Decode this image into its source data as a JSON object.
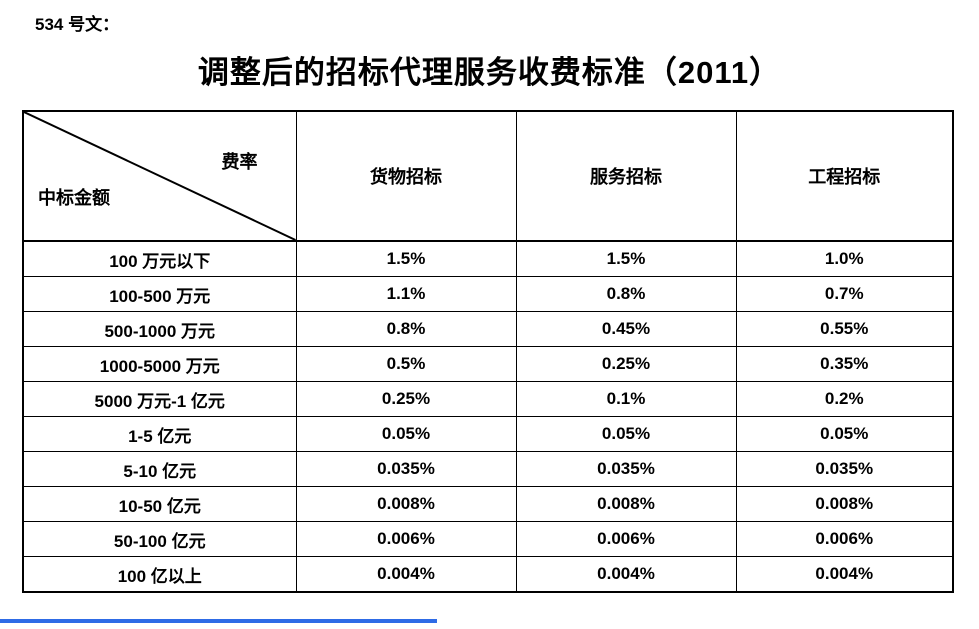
{
  "page": {
    "doc_label": "534 号文：",
    "title": "调整后的招标代理服务收费标准（2011）",
    "background": "#ffffff",
    "text_color": "#000000",
    "accent_color": "#2e6be6"
  },
  "table": {
    "corner_top": "费率",
    "corner_bottom": "中标金额",
    "columns": [
      "货物招标",
      "服务招标",
      "工程招标"
    ],
    "rows": [
      {
        "label": "100 万元以下",
        "values": [
          "1.5%",
          "1.5%",
          "1.0%"
        ]
      },
      {
        "label": "100-500 万元",
        "values": [
          "1.1%",
          "0.8%",
          "0.7%"
        ]
      },
      {
        "label": "500-1000 万元",
        "values": [
          "0.8%",
          "0.45%",
          "0.55%"
        ]
      },
      {
        "label": "1000-5000 万元",
        "values": [
          "0.5%",
          "0.25%",
          "0.35%"
        ]
      },
      {
        "label": "5000 万元-1 亿元",
        "values": [
          "0.25%",
          "0.1%",
          "0.2%"
        ]
      },
      {
        "label": "1-5 亿元",
        "values": [
          "0.05%",
          "0.05%",
          "0.05%"
        ]
      },
      {
        "label": "5-10 亿元",
        "values": [
          "0.035%",
          "0.035%",
          "0.035%"
        ]
      },
      {
        "label": "10-50 亿元",
        "values": [
          "0.008%",
          "0.008%",
          "0.008%"
        ]
      },
      {
        "label": "50-100 亿元",
        "values": [
          "0.006%",
          "0.006%",
          "0.006%"
        ]
      },
      {
        "label": "100 亿以上",
        "values": [
          "0.004%",
          "0.004%",
          "0.004%"
        ]
      }
    ]
  }
}
